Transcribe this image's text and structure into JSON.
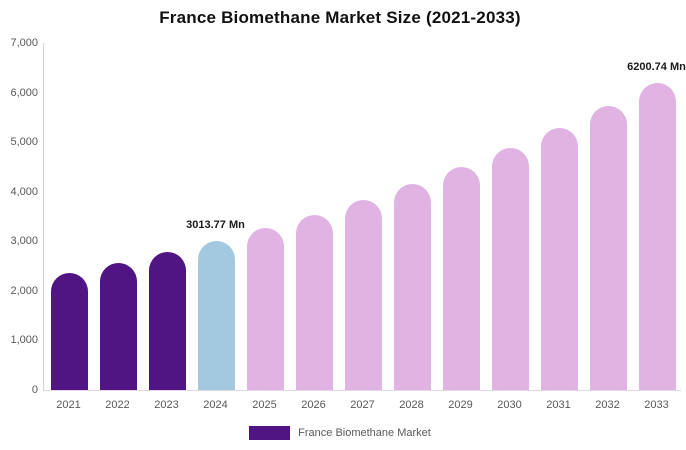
{
  "title": "France Biomethane Market Size (2021-2033)",
  "legend": {
    "label": "France Biomethane Market",
    "swatch_color": "#511483"
  },
  "colors": {
    "historical_bar": "#511483",
    "base_year_bar": "#a3c9e1",
    "forecast_bar": "#e0b3e3",
    "axis_text": "#595959",
    "title_text": "#111111",
    "annotation_text": "#1a1a1a",
    "axis_line": "#d3d3d3"
  },
  "chart_data": {
    "type": "bar",
    "title": "France Biomethane Market Size (2021-2033)",
    "unit": "Mn",
    "categories": [
      "2021",
      "2022",
      "2023",
      "2024",
      "2025",
      "2026",
      "2027",
      "2028",
      "2029",
      "2030",
      "2031",
      "2032",
      "2033"
    ],
    "values": [
      2369.52,
      2567.3,
      2781.58,
      3013.77,
      3265.33,
      3537.9,
      3833.23,
      4153.18,
      4499.85,
      4875.44,
      5282.38,
      5723.28,
      6200.74
    ],
    "bar_colors": [
      "#511483",
      "#511483",
      "#511483",
      "#a3c9e1",
      "#e0b3e3",
      "#e0b3e3",
      "#e0b3e3",
      "#e0b3e3",
      "#e0b3e3",
      "#e0b3e3",
      "#e0b3e3",
      "#e0b3e3",
      "#e0b3e3"
    ],
    "data_labels": [
      {
        "category": "2024",
        "text": "3013.77 Mn"
      },
      {
        "category": "2033",
        "text": "6200.74 Mn"
      }
    ],
    "xlabel": "",
    "ylabel": "",
    "ylim": [
      0,
      7000
    ],
    "y_ticks": [
      "7,000",
      "6,000",
      "5,000",
      "4,000",
      "3,000",
      "2,000",
      "1,000",
      "0"
    ],
    "grid": false,
    "legend_position": "bottom"
  }
}
